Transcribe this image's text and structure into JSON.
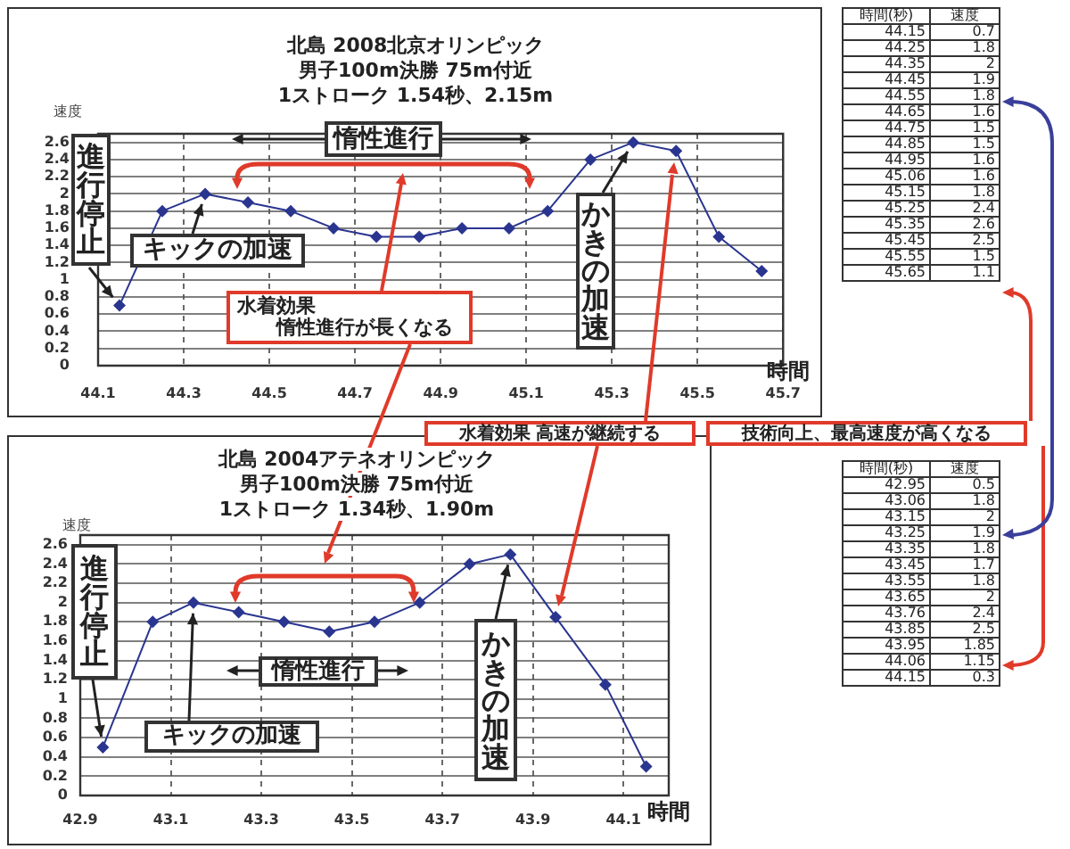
{
  "chart_data": [
    {
      "type": "line",
      "title": "北島 2008北京オリンピック",
      "subtitle": "男子100m決勝 75m付近\n1ストローク 1.54秒、2.15m",
      "xlabel": "時間",
      "ylabel": "速度",
      "x": [
        44.15,
        44.25,
        44.35,
        44.45,
        44.55,
        44.65,
        44.75,
        44.85,
        44.95,
        45.06,
        45.15,
        45.25,
        45.35,
        45.45,
        45.55,
        45.65
      ],
      "series": [
        {
          "color": "#2a3590",
          "values": [
            0.7,
            1.8,
            2,
            1.9,
            1.8,
            1.6,
            1.5,
            1.5,
            1.6,
            1.6,
            1.8,
            2.4,
            2.6,
            2.5,
            1.5,
            1.1
          ]
        }
      ],
      "xlim": [
        44.1,
        45.7
      ],
      "xticks": [
        44.1,
        44.3,
        44.5,
        44.7,
        44.9,
        45.1,
        45.3,
        45.5,
        45.7
      ],
      "ylim": [
        0,
        2.7
      ],
      "yticks": [
        0,
        0.2,
        0.4,
        0.6,
        0.8,
        1,
        1.2,
        1.4,
        1.6,
        1.8,
        2,
        2.2,
        2.4,
        2.6
      ],
      "grid": true,
      "marker": "diamond",
      "annotations": [
        {
          "text": "進行停止",
          "x": 44.15,
          "y": 0.7
        },
        "惰性進行",
        {
          "text": "キックの加速",
          "x": 44.35,
          "y": 2
        },
        {
          "text": "かきの加速",
          "x": 45.35,
          "y": 2.6
        },
        "水着効果",
        "惰性進行が長くなる"
      ]
    },
    {
      "type": "line",
      "title": "北島 2004アテネオリンピック",
      "subtitle": "男子100m決勝 75m付近\n1ストローク 1.34秒、1.90m",
      "xlabel": "時間",
      "ylabel": "速度",
      "x": [
        42.95,
        43.06,
        43.15,
        43.25,
        43.35,
        43.45,
        43.55,
        43.65,
        43.76,
        43.85,
        43.95,
        44.06,
        44.15
      ],
      "series": [
        {
          "color": "#2a3590",
          "values": [
            0.5,
            1.8,
            2,
            1.9,
            1.8,
            1.7,
            1.8,
            2,
            2.4,
            2.5,
            1.85,
            1.15,
            0.3
          ]
        }
      ],
      "xlim": [
        42.9,
        44.2
      ],
      "xticks": [
        42.9,
        43.1,
        43.3,
        43.5,
        43.7,
        43.9,
        44.1
      ],
      "ylim": [
        0,
        2.7
      ],
      "yticks": [
        0,
        0.2,
        0.4,
        0.6,
        0.8,
        1,
        1.2,
        1.4,
        1.6,
        1.8,
        2,
        2.2,
        2.4,
        2.6
      ],
      "grid": true,
      "marker": "diamond",
      "annotations": [
        {
          "text": "進行停止",
          "x": 42.95,
          "y": 0.5
        },
        "惰性進行",
        {
          "text": "キックの加速",
          "x": 43.15,
          "y": 2
        },
        {
          "text": "かきの加速",
          "x": 43.85,
          "y": 2.5
        },
        "水着効果 高速が継続する",
        "技術向上、最高速度が高くなる"
      ]
    },
    {
      "type": "heatmap",
      "ylabel": "時間(秒)",
      "categories": [
        "速度"
      ],
      "y_categories": [
        "44.15",
        "44.25",
        "44.35",
        "44.45",
        "44.55",
        "44.65",
        "44.75",
        "44.85",
        "44.95",
        "45.06",
        "45.15",
        "45.25",
        "45.35",
        "45.45",
        "45.55",
        "45.65"
      ],
      "cells": [
        [
          0.7
        ],
        [
          1.8
        ],
        [
          2
        ],
        [
          1.9
        ],
        [
          1.8
        ],
        [
          1.6
        ],
        [
          1.5
        ],
        [
          1.5
        ],
        [
          1.6
        ],
        [
          1.6
        ],
        [
          1.8
        ],
        [
          2.4
        ],
        [
          2.6
        ],
        [
          2.5
        ],
        [
          1.5
        ],
        [
          1.1
        ]
      ],
      "data_labels": true
    },
    {
      "type": "heatmap",
      "ylabel": "時間(秒)",
      "categories": [
        "速度"
      ],
      "y_categories": [
        "42.95",
        "43.06",
        "43.15",
        "43.25",
        "43.35",
        "43.45",
        "43.55",
        "43.65",
        "43.76",
        "43.85",
        "43.95",
        "44.06",
        "44.15"
      ],
      "cells": [
        [
          0.5
        ],
        [
          1.8
        ],
        [
          2
        ],
        [
          1.9
        ],
        [
          1.8
        ],
        [
          1.7
        ],
        [
          1.8
        ],
        [
          2
        ],
        [
          2.4
        ],
        [
          2.5
        ],
        [
          1.85
        ],
        [
          1.15
        ],
        [
          0.3
        ]
      ],
      "data_labels": true
    }
  ]
}
